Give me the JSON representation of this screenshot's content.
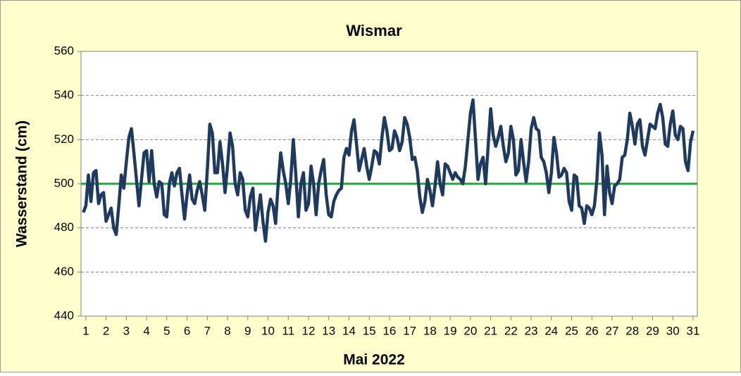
{
  "chart_data": {
    "type": "line",
    "title": "Wismar",
    "xlabel": "Mai  2022",
    "ylabel": "Wasserstand (cm)",
    "xlim": [
      0.76,
      31.21
    ],
    "xticks": [
      1,
      2,
      3,
      4,
      5,
      6,
      7,
      8,
      9,
      10,
      11,
      12,
      13,
      14,
      15,
      16,
      17,
      18,
      19,
      20,
      21,
      22,
      23,
      24,
      25,
      26,
      27,
      28,
      29,
      30,
      31
    ],
    "ylim": [
      440,
      560
    ],
    "yticks": [
      440,
      460,
      480,
      500,
      520,
      540,
      560
    ],
    "grid": true,
    "reference_line": {
      "value": 500,
      "color": "#1fa83a"
    },
    "x": [
      0.875,
      1,
      1.125,
      1.25,
      1.375,
      1.5,
      1.625,
      1.75,
      1.875,
      2,
      2.125,
      2.25,
      2.375,
      2.5,
      2.625,
      2.75,
      2.875,
      3,
      3.125,
      3.25,
      3.375,
      3.5,
      3.625,
      3.75,
      3.875,
      4,
      4.125,
      4.25,
      4.375,
      4.5,
      4.625,
      4.75,
      4.875,
      5,
      5.125,
      5.25,
      5.375,
      5.5,
      5.625,
      5.75,
      5.875,
      6,
      6.125,
      6.25,
      6.375,
      6.5,
      6.625,
      6.75,
      6.875,
      7,
      7.125,
      7.25,
      7.375,
      7.5,
      7.625,
      7.75,
      7.875,
      8,
      8.125,
      8.25,
      8.375,
      8.5,
      8.625,
      8.75,
      8.875,
      9,
      9.125,
      9.25,
      9.375,
      9.5,
      9.625,
      9.75,
      9.875,
      10,
      10.125,
      10.25,
      10.375,
      10.5,
      10.625,
      10.75,
      10.875,
      11,
      11.125,
      11.25,
      11.375,
      11.5,
      11.625,
      11.75,
      11.875,
      12,
      12.125,
      12.25,
      12.375,
      12.5,
      12.625,
      12.75,
      12.875,
      13,
      13.125,
      13.25,
      13.375,
      13.5,
      13.625,
      13.75,
      13.875,
      14,
      14.125,
      14.25,
      14.375,
      14.5,
      14.625,
      14.75,
      14.875,
      15,
      15.125,
      15.25,
      15.375,
      15.5,
      15.625,
      15.75,
      15.875,
      16,
      16.125,
      16.25,
      16.375,
      16.5,
      16.625,
      16.75,
      16.875,
      17,
      17.125,
      17.25,
      17.375,
      17.5,
      17.625,
      17.75,
      17.875,
      18,
      18.125,
      18.25,
      18.375,
      18.5,
      18.625,
      18.75,
      18.875,
      19,
      19.125,
      19.25,
      19.375,
      19.5,
      19.625,
      19.75,
      19.875,
      20,
      20.125,
      20.25,
      20.375,
      20.5,
      20.625,
      20.75,
      20.875,
      21,
      21.125,
      21.25,
      21.375,
      21.5,
      21.625,
      21.75,
      21.875,
      22,
      22.125,
      22.25,
      22.375,
      22.5,
      22.625,
      22.75,
      22.875,
      23,
      23.125,
      23.25,
      23.375,
      23.5,
      23.625,
      23.75,
      23.875,
      24,
      24.125,
      24.25,
      24.375,
      24.5,
      24.625,
      24.75,
      24.875,
      25,
      25.125,
      25.25,
      25.375,
      25.5,
      25.625,
      25.75,
      25.875,
      26,
      26.125,
      26.25,
      26.375,
      26.5,
      26.625,
      26.75,
      26.875,
      27,
      27.125,
      27.25,
      27.375,
      27.5,
      27.625,
      27.75,
      27.875,
      28,
      28.125,
      28.25,
      28.375,
      28.5,
      28.625,
      28.75,
      28.875,
      29,
      29.125,
      29.25,
      29.375,
      29.5,
      29.625,
      29.75,
      29.875,
      30,
      30.125,
      30.25,
      30.375,
      30.5,
      30.625,
      30.75,
      30.875,
      31
    ],
    "series": [
      {
        "color": "#1f3a5f",
        "values": [
          487,
          490,
          504,
          492,
          505,
          506,
          491,
          495,
          496,
          483,
          486,
          489,
          480,
          477,
          490,
          504,
          498,
          510,
          521,
          525,
          514,
          502,
          490,
          502,
          514,
          515,
          501,
          515,
          500,
          494,
          501,
          500,
          486,
          485,
          500,
          505,
          499,
          505,
          507,
          495,
          484,
          495,
          504,
          493,
          491,
          497,
          501,
          495,
          488,
          506,
          527,
          523,
          505,
          505,
          519,
          509,
          496,
          508,
          523,
          517,
          500,
          495,
          505,
          502,
          488,
          485,
          494,
          498,
          479,
          487,
          495,
          483,
          474,
          487,
          493,
          490,
          482,
          500,
          514,
          506,
          500,
          491,
          502,
          520,
          504,
          485,
          500,
          505,
          488,
          491,
          508,
          500,
          486,
          500,
          506,
          511,
          495,
          486,
          485,
          492,
          495,
          497,
          498,
          512,
          516,
          513,
          524,
          529,
          518,
          506,
          511,
          516,
          508,
          502,
          508,
          515,
          514,
          509,
          521,
          530,
          524,
          515,
          516,
          524,
          521,
          515,
          519,
          530,
          527,
          521,
          511,
          512,
          506,
          494,
          487,
          492,
          502,
          497,
          490,
          499,
          510,
          500,
          495,
          509,
          508,
          505,
          502,
          505,
          503,
          502,
          500,
          508,
          520,
          532,
          538,
          520,
          502,
          509,
          512,
          500,
          517,
          534,
          522,
          517,
          521,
          526,
          517,
          510,
          514,
          526,
          520,
          504,
          506,
          520,
          510,
          501,
          510,
          525,
          530,
          525,
          524,
          512,
          510,
          505,
          496,
          505,
          521,
          514,
          503,
          504,
          507,
          505,
          492,
          488,
          504,
          503,
          490,
          489,
          482,
          490,
          489,
          486,
          490,
          502,
          523,
          513,
          486,
          508,
          496,
          491,
          499,
          500,
          502,
          512,
          513,
          520,
          532,
          526,
          518,
          527,
          529,
          517,
          513,
          520,
          527,
          526,
          525,
          532,
          536,
          530,
          518,
          517,
          527,
          533,
          522,
          520,
          526,
          525,
          510,
          506,
          519,
          524
        ]
      }
    ]
  }
}
